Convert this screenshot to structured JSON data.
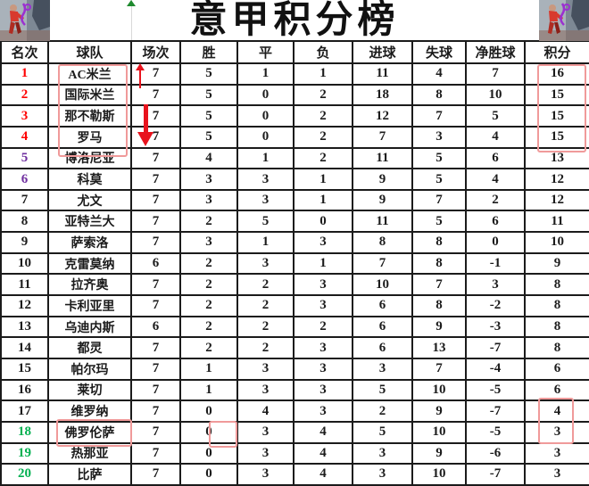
{
  "title": "意甲积分榜",
  "colors": {
    "text": "#1b1b1b",
    "grid": "#1b1b1b",
    "rank_red": "#ff0000",
    "rank_purple": "#7030a0",
    "rank_green": "#00b050",
    "annotation_box": "#f09a9a",
    "arrow_red": "#e8131d",
    "green_tick": "#1e8a2e"
  },
  "chart_data": {
    "type": "table",
    "title": "意甲积分榜",
    "columns": [
      "名次",
      "球队",
      "场次",
      "胜",
      "平",
      "负",
      "进球",
      "失球",
      "净胜球",
      "积分"
    ],
    "rows": [
      [
        1,
        "AC米兰",
        7,
        5,
        1,
        1,
        11,
        4,
        7,
        16
      ],
      [
        2,
        "国际米兰",
        7,
        5,
        0,
        2,
        18,
        8,
        10,
        15
      ],
      [
        3,
        "那不勒斯",
        7,
        5,
        0,
        2,
        12,
        7,
        5,
        15
      ],
      [
        4,
        "罗马",
        7,
        5,
        0,
        2,
        7,
        3,
        4,
        15
      ],
      [
        5,
        "博洛尼亚",
        7,
        4,
        1,
        2,
        11,
        5,
        6,
        13
      ],
      [
        6,
        "科莫",
        7,
        3,
        3,
        1,
        9,
        5,
        4,
        12
      ],
      [
        7,
        "尤文",
        7,
        3,
        3,
        1,
        9,
        7,
        2,
        12
      ],
      [
        8,
        "亚特兰大",
        7,
        2,
        5,
        0,
        11,
        5,
        6,
        11
      ],
      [
        9,
        "萨索洛",
        7,
        3,
        1,
        3,
        8,
        8,
        0,
        10
      ],
      [
        10,
        "克雷莫纳",
        6,
        2,
        3,
        1,
        7,
        8,
        -1,
        9
      ],
      [
        11,
        "拉齐奥",
        7,
        2,
        2,
        3,
        10,
        7,
        3,
        8
      ],
      [
        12,
        "卡利亚里",
        7,
        2,
        2,
        3,
        6,
        8,
        -2,
        8
      ],
      [
        13,
        "乌迪内斯",
        6,
        2,
        2,
        2,
        6,
        9,
        -3,
        8
      ],
      [
        14,
        "都灵",
        7,
        2,
        2,
        3,
        6,
        13,
        -7,
        8
      ],
      [
        15,
        "帕尔玛",
        7,
        1,
        3,
        3,
        3,
        7,
        -4,
        6
      ],
      [
        16,
        "莱切",
        7,
        1,
        3,
        3,
        5,
        10,
        -5,
        6
      ],
      [
        17,
        "维罗纳",
        7,
        0,
        4,
        3,
        2,
        9,
        -7,
        4
      ],
      [
        18,
        "佛罗伦萨",
        7,
        0,
        3,
        4,
        5,
        10,
        -5,
        3
      ],
      [
        19,
        "热那亚",
        7,
        0,
        3,
        4,
        3,
        9,
        -6,
        3
      ],
      [
        20,
        "比萨",
        7,
        0,
        3,
        4,
        3,
        10,
        -7,
        3
      ]
    ],
    "rank_colors": [
      "red",
      "red",
      "red",
      "red",
      "purple",
      "purple",
      "black",
      "black",
      "black",
      "black",
      "black",
      "black",
      "black",
      "black",
      "black",
      "black",
      "black",
      "green",
      "green",
      "green"
    ]
  },
  "annotations": {
    "red_box_team_names_rows": "1-4",
    "red_box_points_rows": "1-4",
    "red_box_team_name_row": "18",
    "red_box_wins_value_row": "18",
    "red_box_points_rows_lower": "17-18",
    "red_up_arrow_row": "1",
    "red_down_arrow_rows": "2-3"
  }
}
